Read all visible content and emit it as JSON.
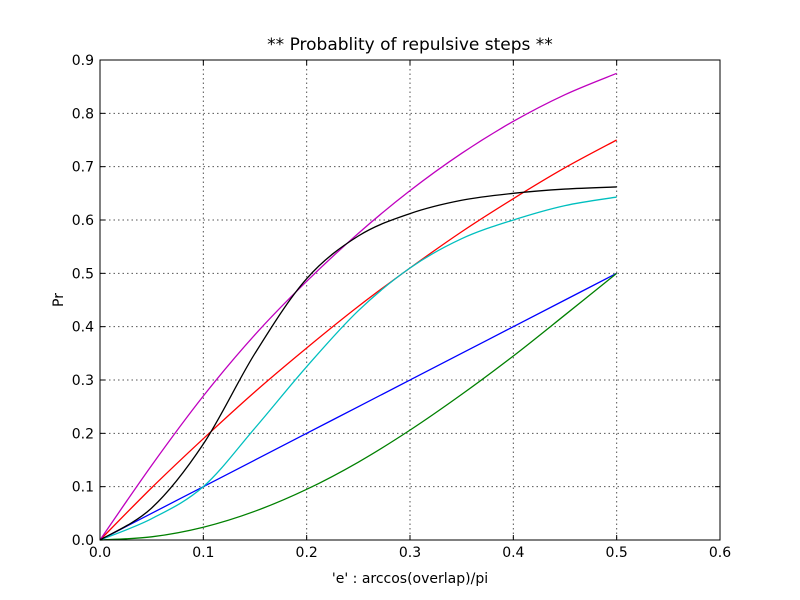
{
  "chart_data": {
    "type": "line",
    "title": "** Probablity of repulsive steps **",
    "xlabel": "'e' : arccos(overlap)/pi",
    "ylabel": "Pr",
    "xlim": [
      0,
      0.6
    ],
    "ylim": [
      0,
      0.9
    ],
    "xticks": [
      "0.0",
      "0.1",
      "0.2",
      "0.3",
      "0.4",
      "0.5",
      "0.6"
    ],
    "yticks": [
      "0.0",
      "0.1",
      "0.2",
      "0.3",
      "0.4",
      "0.5",
      "0.6",
      "0.7",
      "0.8",
      "0.9"
    ],
    "grid": true,
    "x": [
      0,
      0.05,
      0.1,
      0.15,
      0.2,
      0.25,
      0.3,
      0.35,
      0.4,
      0.45,
      0.5
    ],
    "series": [
      {
        "color": "#0000ff",
        "values": [
          0,
          0.05,
          0.1,
          0.15,
          0.2,
          0.25,
          0.3,
          0.35,
          0.4,
          0.45,
          0.5
        ]
      },
      {
        "color": "#008000",
        "values": [
          0,
          0.006,
          0.024,
          0.054,
          0.095,
          0.146,
          0.206,
          0.273,
          0.345,
          0.422,
          0.5
        ]
      },
      {
        "color": "#ff0000",
        "values": [
          0,
          0.098,
          0.19,
          0.278,
          0.36,
          0.438,
          0.51,
          0.578,
          0.64,
          0.698,
          0.75
        ]
      },
      {
        "color": "#00bfbf",
        "values": [
          0,
          0.04,
          0.1,
          0.21,
          0.325,
          0.43,
          0.51,
          0.565,
          0.6,
          0.627,
          0.643
        ]
      },
      {
        "color": "#bf00bf",
        "values": [
          0,
          0.14,
          0.27,
          0.385,
          0.485,
          0.575,
          0.655,
          0.725,
          0.785,
          0.835,
          0.875
        ]
      },
      {
        "color": "#000000",
        "values": [
          0,
          0.06,
          0.18,
          0.35,
          0.49,
          0.57,
          0.612,
          0.637,
          0.65,
          0.658,
          0.662
        ]
      }
    ]
  }
}
